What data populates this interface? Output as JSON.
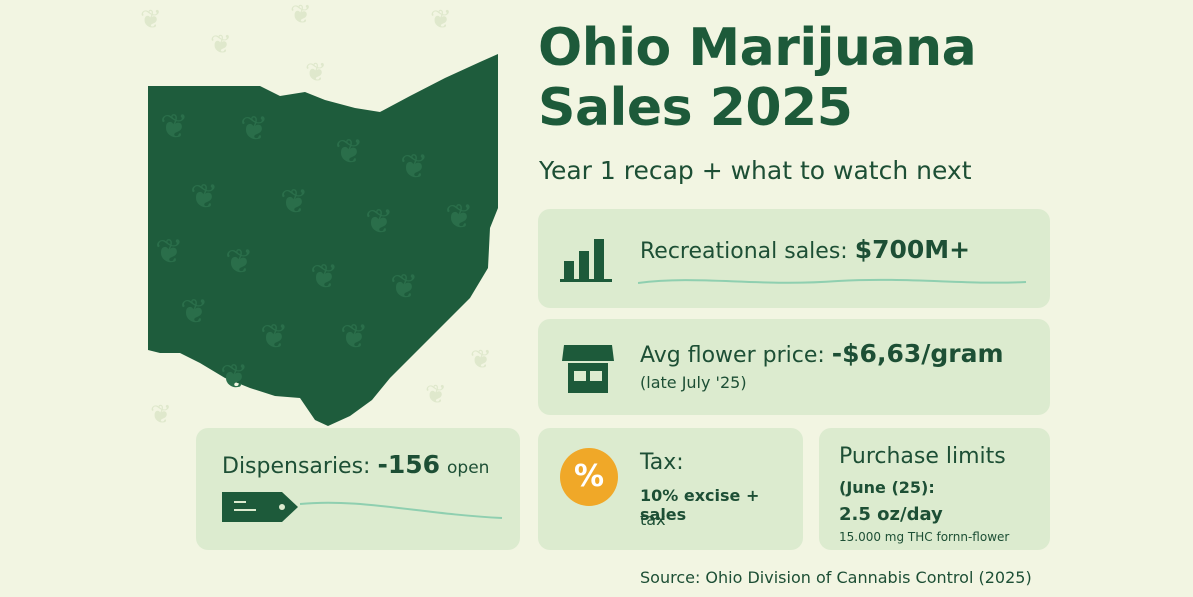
{
  "header": {
    "title_line1": "Ohio Marijuana",
    "title_line2": "Sales 2025",
    "subtitle": "Year 1 recap + what to watch next"
  },
  "stats": {
    "sales": {
      "label": "Recreational sales:",
      "value": "$700M+"
    },
    "price": {
      "label": "Avg flower price: ",
      "value": "-$6,63/gram",
      "note": "(late July '25)"
    },
    "dispensaries": {
      "label": "Dispensaries:",
      "value": "-156",
      "unit": "open"
    },
    "tax": {
      "label": "Tax:",
      "detail_line1": "10% excise + sales",
      "detail_line2": "tax",
      "symbol": "%"
    },
    "limits": {
      "label": "Purchase limits",
      "date": "(June (25):",
      "amount": "2.5 oz/day",
      "thc": "15.000 mg THC fornn-flower"
    }
  },
  "source": "Source: Ohio Division of Cannabis Control (2025)",
  "colors": {
    "background": "#f2f5e2",
    "primary": "#1d5a3a",
    "card": "#dcebcf",
    "accent": "#f0a828"
  },
  "icons": [
    "cannabis-leaf-icon",
    "bar-chart-icon",
    "storefront-icon",
    "percent-icon",
    "price-tag-icon"
  ]
}
